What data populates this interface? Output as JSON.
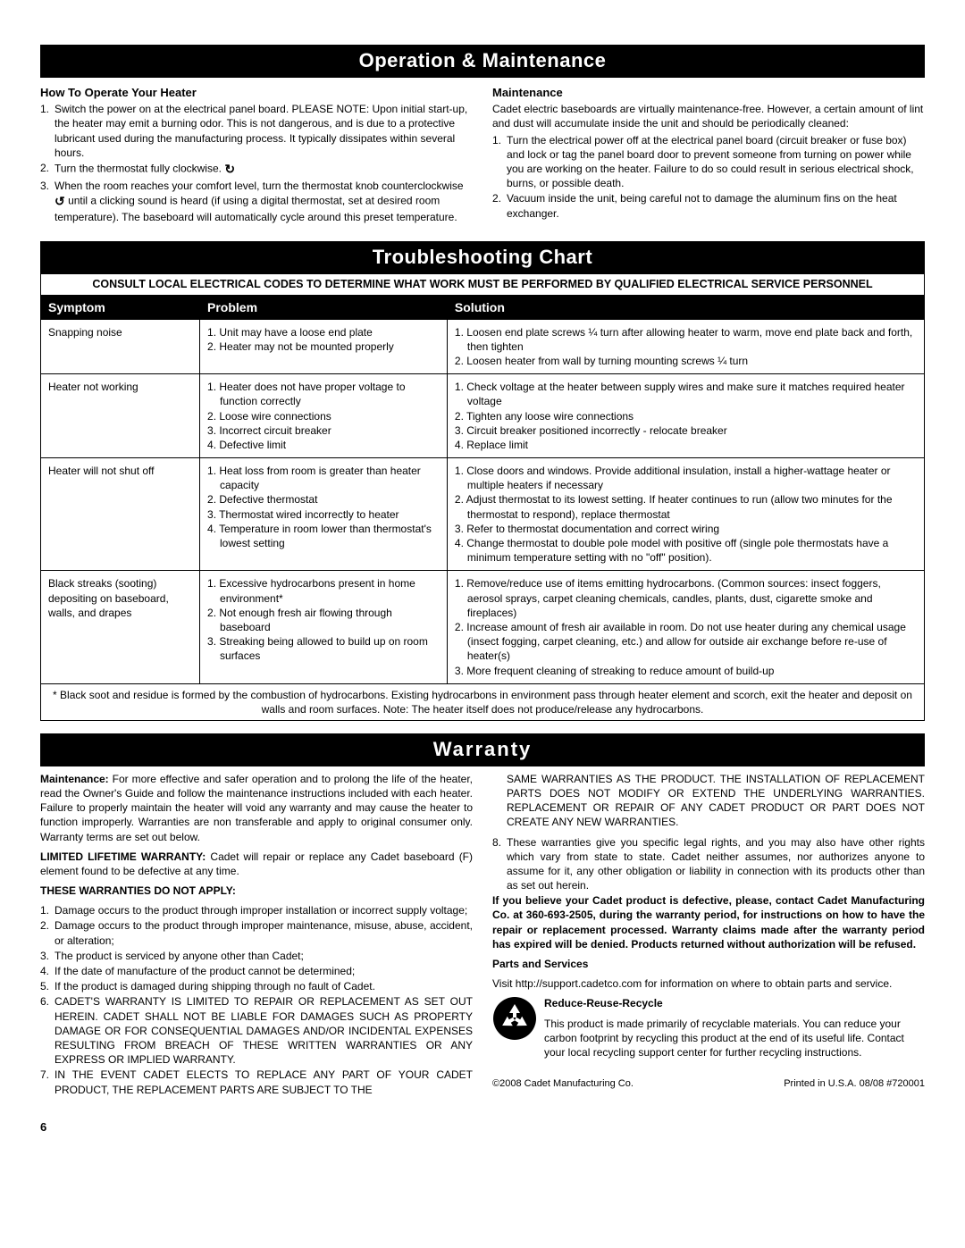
{
  "sections": {
    "opMaint": {
      "banner": "Operation & Maintenance",
      "howTo": {
        "heading": "How To Operate Your Heater",
        "items": [
          "Switch the power on at the electrical panel board. PLEASE NOTE: Upon initial start-up, the heater may emit a burning odor. This is not dangerous, and is due to a protective lubricant used during the manufacturing process. It typically dissipates within several hours.",
          "Turn the thermostat fully clockwise.",
          "When the room reaches your comfort level, turn the thermostat knob counterclockwise  until a clicking sound is heard (if using a digital thermostat, set at desired room temperature). The baseboard will automatically cycle around this preset temperature."
        ]
      },
      "maint": {
        "heading": "Maintenance",
        "intro": "Cadet electric baseboards are virtually maintenance-free. However, a certain amount of lint and dust will accumulate inside the unit and should be periodically cleaned:",
        "items": [
          "Turn the electrical power off at the electrical panel board (circuit breaker or fuse box) and lock or tag the panel board door to prevent someone from turning on power while you are working on the heater. Failure to do so could result in serious electrical shock, burns, or possible death.",
          "Vacuum inside the unit, being careful not to damage the aluminum fins on the heat exchanger."
        ]
      }
    },
    "chart": {
      "banner": "Troubleshooting Chart",
      "consult": "CONSULT LOCAL ELECTRICAL CODES TO DETERMINE WHAT WORK MUST BE PERFORMED BY QUALIFIED ELECTRICAL SERVICE PERSONNEL",
      "headers": {
        "c1": "Symptom",
        "c2": "Problem",
        "c3": "Solution"
      },
      "rows": [
        {
          "symptom": "Snapping noise",
          "problem": "1. Unit may have a loose end plate\n2. Heater may not be mounted properly",
          "solution": "1. Loosen end plate screws ¼ turn after allowing heater to warm, move end plate back and forth, then tighten\n2. Loosen heater from wall by turning mounting screws ¼ turn"
        },
        {
          "symptom": "Heater not working",
          "problem": "1. Heater does not have proper voltage to function correctly\n2. Loose wire connections\n3. Incorrect circuit breaker\n4. Defective limit",
          "solution": "1. Check voltage at the heater between supply wires and make sure it matches required heater voltage\n2. Tighten any loose wire connections\n3. Circuit breaker positioned incorrectly - relocate breaker\n4. Replace limit"
        },
        {
          "symptom": "Heater will not shut off",
          "problem": "1. Heat loss from room is greater than heater capacity\n2. Defective thermostat\n3. Thermostat wired incorrectly to heater\n4. Temperature in room lower than thermostat's lowest setting",
          "solution": "1. Close doors and windows. Provide additional insulation, install a higher-wattage heater or multiple heaters if necessary\n2. Adjust thermostat to its lowest setting. If heater continues to run (allow  two minutes for the thermostat to respond), replace thermostat\n3. Refer to thermostat documentation and correct wiring\n4. Change thermostat to double pole model with positive off (single pole thermostats have a minimum temperature setting with no \"off\" position)."
        },
        {
          "symptom": "Black streaks (sooting) depositing on baseboard, walls, and drapes",
          "problem": "1. Excessive hydrocarbons present in home environment*\n2. Not enough fresh air flowing through baseboard\n3. Streaking being allowed to build up on room surfaces",
          "solution": "1. Remove/reduce use of items emitting hydrocarbons. (Common sources: insect foggers, aerosol sprays, carpet cleaning chemicals, candles, plants, dust, cigarette smoke and fireplaces)\n2. Increase amount of fresh air available in room. Do not use heater during any chemical usage (insect fogging, carpet cleaning, etc.) and allow for outside air exchange before re-use of heater(s)\n3. More frequent cleaning of streaking to reduce amount of build-up"
        }
      ],
      "note": "* Black soot and residue is formed by the combustion of hydrocarbons.  Existing hydrocarbons in environment pass through heater element and scorch, exit the heater and deposit on walls and room surfaces.  Note: The heater itself does not produce/release any hydrocarbons."
    },
    "warranty": {
      "banner": "Warranty",
      "left": {
        "p1a": "Maintenance: ",
        "p1b": "For more effective and safer operation and to prolong the life of the heater, read the Owner's Guide and follow the maintenance instructions included with each heater. Failure to properly maintain the heater will void any warranty and may cause the heater to function improperly. Warranties are non transferable and apply to original consumer only. Warranty terms are set out below.",
        "p2a": "LIMITED LIFETIME WARRANTY: ",
        "p2b": "Cadet will repair or replace any Cadet baseboard (F) element found to be defective at any time.",
        "h3": "THESE WARRANTIES DO NOT APPLY:",
        "items": [
          "Damage occurs to the product through improper installation or incorrect supply voltage;",
          "Damage occurs to the product through improper maintenance, misuse, abuse, accident, or alteration;",
          "The product is serviced by anyone other than Cadet;",
          "If the date of manufacture of the product cannot be determined;",
          "If the product is damaged during shipping through no fault of Cadet.",
          "CADET'S WARRANTY IS LIMITED TO REPAIR OR REPLACEMENT AS SET OUT HEREIN. CADET SHALL NOT BE LIABLE FOR DAMAGES SUCH AS PROPERTY DAMAGE OR FOR CONSEQUENTIAL DAMAGES AND/OR INCIDENTAL EXPENSES RESULTING FROM BREACH OF THESE WRITTEN WARRANTIES OR ANY EXPRESS OR IMPLIED WARRANTY.",
          "IN THE EVENT CADET ELECTS TO REPLACE ANY PART OF YOUR CADET PRODUCT, THE REPLACEMENT PARTS ARE SUBJECT TO THE"
        ]
      },
      "right": {
        "cont": "SAME WARRANTIES AS THE PRODUCT. THE INSTALLATION OF REPLACEMENT PARTS DOES NOT MODIFY OR EXTEND THE UNDERLYING WARRANTIES. REPLACEMENT OR REPAIR OF ANY CADET PRODUCT OR PART DOES NOT CREATE ANY NEW WARRANTIES.",
        "item8": "These warranties give you specific legal rights, and you may also have other rights which vary from state to state. Cadet neither assumes, nor authorizes anyone to assume for it, any other obligation or liability in connection with its products other than as set out herein.",
        "bold": "If you believe your Cadet product is defective, please, contact Cadet Manufacturing Co. at 360-693-2505, during the warranty period, for instructions on how to have the repair or replacement processed. Warranty claims made after the warranty period has expired will be denied. Products returned without authorization will be refused.",
        "partsH": "Parts and Services",
        "partsP": "Visit http://support.cadetco.com for information on where to obtain parts and service.",
        "recycleH": "Reduce-Reuse-Recycle",
        "recycleP": "This product is made primarily of recyclable materials. You can reduce your carbon footprint by recycling this product at the end of its useful life. Contact your local recycling support center for further recycling instructions."
      }
    },
    "footer": {
      "copyright": "©2008 Cadet Manufacturing Co.",
      "printed": "Printed in U.S.A.   08/08   #720001",
      "page": "6"
    }
  },
  "colors": {
    "banner_bg": "#000000",
    "banner_fg": "#ffffff",
    "text": "#000000",
    "page_bg": "#ffffff"
  },
  "col_widths": {
    "symptom": "18%",
    "problem": "28%",
    "solution": "54%"
  }
}
